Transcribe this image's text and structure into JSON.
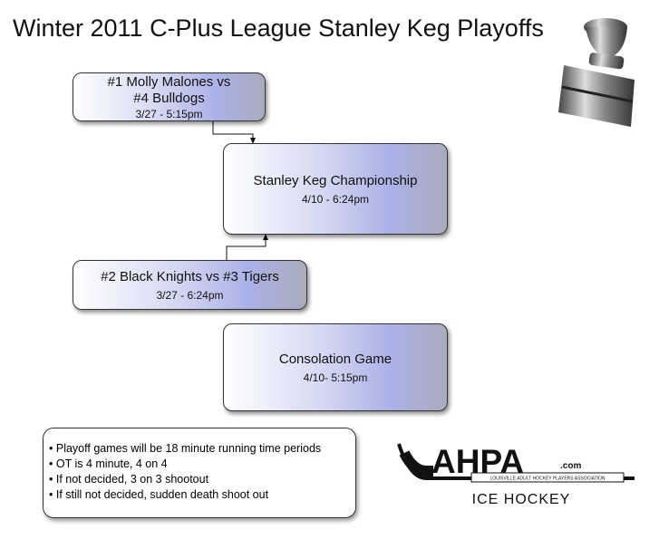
{
  "header": {
    "title": "Winter 2011 C-Plus League Stanley Keg Playoffs"
  },
  "games": [
    {
      "title_lines": [
        "#1 Molly Malones vs",
        "#4 Bulldogs"
      ],
      "time": "3/27 - 5:15pm"
    },
    {
      "title_lines": [
        "Stanley Keg Championship"
      ],
      "time": "4/10 - 6:24pm"
    },
    {
      "title_lines": [
        "#2 Black Knights vs #3 Tigers"
      ],
      "time": "3/27 - 6:24pm"
    },
    {
      "title_lines": [
        "Consolation Game"
      ],
      "time": "4/10- 5:15pm"
    }
  ],
  "notes": [
    "Playoff games will be 18 minute running time periods",
    "OT is 4 minute, 4 on 4",
    "If not decided, 3 on 3 shootout",
    "If still not decided, sudden death shoot out"
  ],
  "logo": {
    "name": "AHPA",
    "suffix": ".com",
    "tagline": "LOUISVILLE ADULT HOCKEY PLAYERS ASSOCIATION",
    "caption": "ICE HOCKEY"
  }
}
